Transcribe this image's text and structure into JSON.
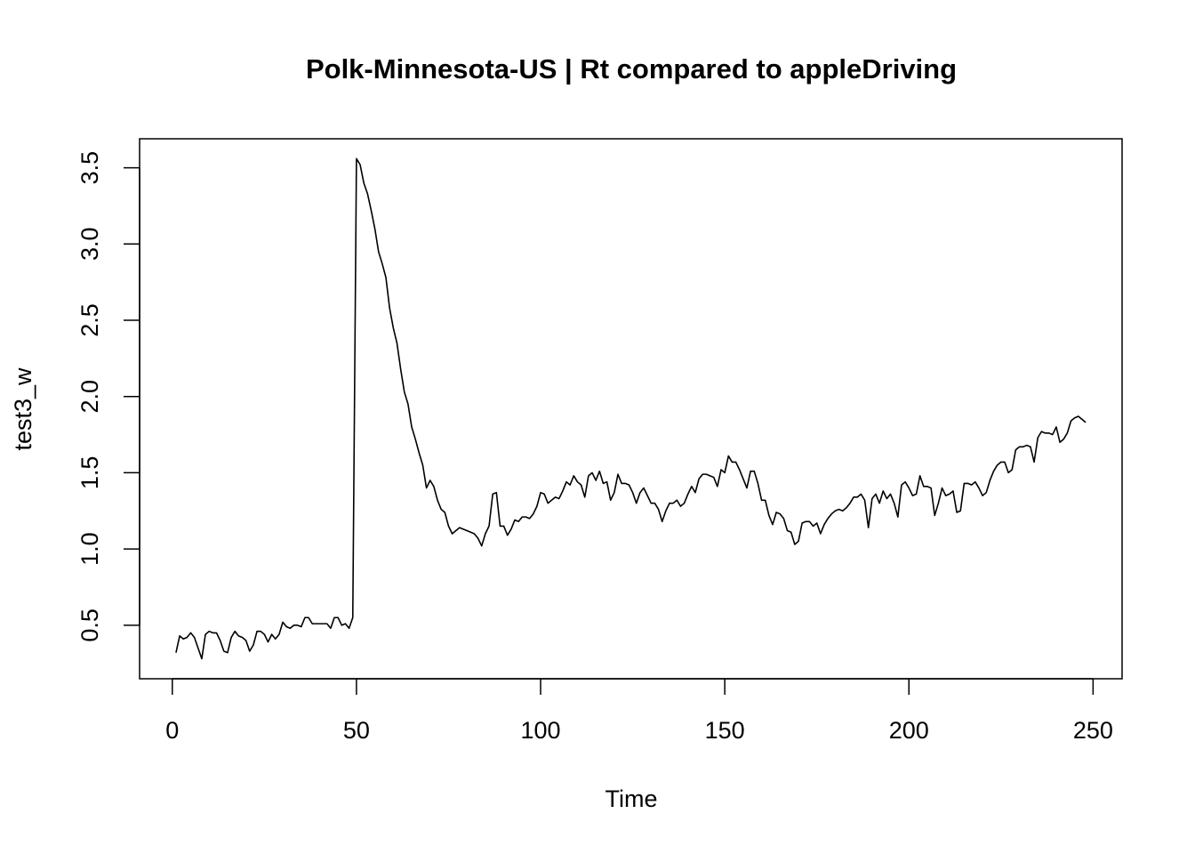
{
  "chart_data": {
    "type": "line",
    "title": "Polk-Minnesota-US | Rt compared to appleDriving",
    "x_label": "Time",
    "y_label": "test3_w",
    "color": "#000000",
    "x": [
      1,
      2,
      3,
      4,
      5,
      6,
      7,
      8,
      9,
      10,
      11,
      12,
      13,
      14,
      15,
      16,
      17,
      18,
      19,
      20,
      21,
      22,
      23,
      24,
      25,
      26,
      27,
      28,
      29,
      30,
      31,
      32,
      33,
      34,
      35,
      36,
      37,
      38,
      39,
      40,
      41,
      42,
      43,
      44,
      45,
      46,
      47,
      48,
      49,
      50,
      51,
      52,
      53,
      54,
      55,
      56,
      57,
      58,
      59,
      60,
      61,
      62,
      63,
      64,
      65,
      66,
      67,
      68,
      69,
      70,
      71,
      72,
      73,
      74,
      75,
      76,
      77,
      78,
      79,
      80,
      81,
      82,
      83,
      84,
      85,
      86,
      87,
      88,
      89,
      90,
      91,
      92,
      93,
      94,
      95,
      96,
      97,
      98,
      99,
      100,
      101,
      102,
      103,
      104,
      105,
      106,
      107,
      108,
      109,
      110,
      111,
      112,
      113,
      114,
      115,
      116,
      117,
      118,
      119,
      120,
      121,
      122,
      123,
      124,
      125,
      126,
      127,
      128,
      129,
      130,
      131,
      132,
      133,
      134,
      135,
      136,
      137,
      138,
      139,
      140,
      141,
      142,
      143,
      144,
      145,
      146,
      147,
      148,
      149,
      150,
      151,
      152,
      153,
      154,
      155,
      156,
      157,
      158,
      159,
      160,
      161,
      162,
      163,
      164,
      165,
      166,
      167,
      168,
      169,
      170,
      171,
      172,
      173,
      174,
      175,
      176,
      177,
      178,
      179,
      180,
      181,
      182,
      183,
      184,
      185,
      186,
      187,
      188,
      189,
      190,
      191,
      192,
      193,
      194,
      195,
      196,
      197,
      198,
      199,
      200,
      201,
      202,
      203,
      204,
      205,
      206,
      207,
      208,
      209,
      210,
      211,
      212,
      213,
      214,
      215,
      216,
      217,
      218,
      219,
      220,
      221,
      222,
      223,
      224,
      225,
      226,
      227,
      228,
      229,
      230,
      231,
      232,
      233,
      234,
      235,
      236,
      237,
      238,
      239,
      240,
      241,
      242,
      243,
      244,
      245,
      246,
      247,
      248
    ],
    "values": [
      0.32,
      0.43,
      0.41,
      0.42,
      0.45,
      0.42,
      0.35,
      0.28,
      0.44,
      0.46,
      0.45,
      0.45,
      0.4,
      0.33,
      0.32,
      0.42,
      0.46,
      0.43,
      0.42,
      0.4,
      0.33,
      0.37,
      0.46,
      0.46,
      0.44,
      0.39,
      0.44,
      0.41,
      0.44,
      0.52,
      0.49,
      0.48,
      0.5,
      0.5,
      0.49,
      0.55,
      0.55,
      0.51,
      0.51,
      0.51,
      0.51,
      0.51,
      0.48,
      0.55,
      0.55,
      0.5,
      0.51,
      0.48,
      0.55,
      3.56,
      3.52,
      3.4,
      3.33,
      3.22,
      3.1,
      2.95,
      2.87,
      2.78,
      2.58,
      2.45,
      2.35,
      2.18,
      2.03,
      1.95,
      1.8,
      1.72,
      1.63,
      1.55,
      1.4,
      1.45,
      1.41,
      1.32,
      1.26,
      1.24,
      1.15,
      1.1,
      1.12,
      1.14,
      1.13,
      1.12,
      1.11,
      1.1,
      1.07,
      1.02,
      1.1,
      1.15,
      1.36,
      1.37,
      1.15,
      1.15,
      1.09,
      1.13,
      1.19,
      1.18,
      1.21,
      1.21,
      1.2,
      1.23,
      1.28,
      1.37,
      1.36,
      1.3,
      1.32,
      1.34,
      1.33,
      1.38,
      1.44,
      1.42,
      1.48,
      1.44,
      1.42,
      1.34,
      1.48,
      1.5,
      1.45,
      1.51,
      1.43,
      1.44,
      1.32,
      1.37,
      1.49,
      1.43,
      1.43,
      1.42,
      1.37,
      1.3,
      1.37,
      1.4,
      1.35,
      1.3,
      1.3,
      1.26,
      1.18,
      1.25,
      1.3,
      1.3,
      1.32,
      1.28,
      1.3,
      1.36,
      1.41,
      1.37,
      1.46,
      1.49,
      1.49,
      1.48,
      1.47,
      1.41,
      1.52,
      1.5,
      1.61,
      1.57,
      1.57,
      1.52,
      1.46,
      1.4,
      1.51,
      1.51,
      1.43,
      1.32,
      1.32,
      1.22,
      1.16,
      1.24,
      1.23,
      1.2,
      1.12,
      1.11,
      1.03,
      1.05,
      1.17,
      1.18,
      1.18,
      1.15,
      1.17,
      1.1,
      1.16,
      1.2,
      1.23,
      1.25,
      1.26,
      1.25,
      1.27,
      1.3,
      1.34,
      1.34,
      1.36,
      1.32,
      1.14,
      1.33,
      1.36,
      1.3,
      1.38,
      1.33,
      1.36,
      1.3,
      1.21,
      1.42,
      1.44,
      1.4,
      1.35,
      1.36,
      1.48,
      1.41,
      1.41,
      1.4,
      1.22,
      1.3,
      1.4,
      1.35,
      1.36,
      1.38,
      1.24,
      1.25,
      1.43,
      1.43,
      1.42,
      1.44,
      1.4,
      1.35,
      1.37,
      1.45,
      1.51,
      1.55,
      1.57,
      1.57,
      1.5,
      1.52,
      1.65,
      1.67,
      1.67,
      1.68,
      1.67,
      1.57,
      1.73,
      1.77,
      1.76,
      1.76,
      1.75,
      1.8,
      1.7,
      1.72,
      1.76,
      1.84,
      1.86,
      1.87,
      1.85,
      1.83
    ],
    "xlim": [
      -8.88,
      257.88
    ],
    "ylim": [
      0.149,
      3.69
    ],
    "xticks": [
      0,
      50,
      100,
      150,
      200,
      250
    ],
    "yticks": [
      0.5,
      {
        "value": 1,
        "label": "1.0"
      },
      1.5,
      {
        "value": 2,
        "label": "2.0"
      },
      2.5,
      {
        "value": 3,
        "label": "3.0"
      },
      3.5
    ]
  }
}
